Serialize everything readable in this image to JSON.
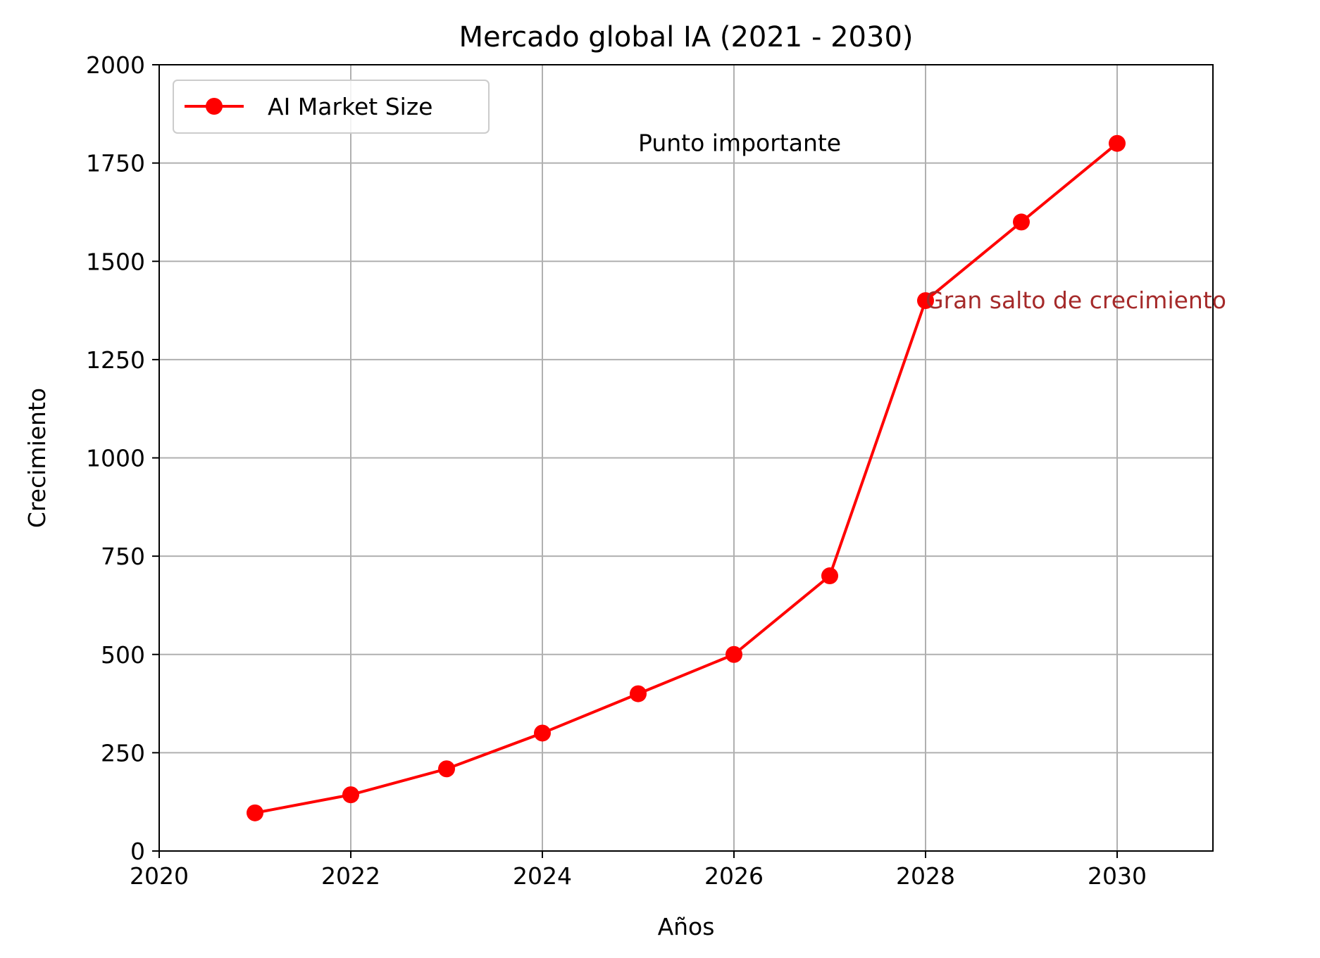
{
  "chart_data": {
    "type": "line",
    "title": "Mercado global IA (2021 - 2030)",
    "xlabel": "Años",
    "ylabel": "Crecimiento",
    "xlim": [
      2020,
      2031
    ],
    "ylim": [
      0,
      2000
    ],
    "x_ticks": [
      2020,
      2022,
      2024,
      2026,
      2028,
      2030
    ],
    "y_ticks": [
      0,
      250,
      500,
      750,
      1000,
      1250,
      1500,
      1750,
      2000
    ],
    "grid": true,
    "legend_position": "upper-left",
    "series": [
      {
        "name": "AI Market Size",
        "color": "#ff0000",
        "marker": "circle",
        "x": [
          2021,
          2022,
          2023,
          2024,
          2025,
          2026,
          2027,
          2028,
          2029,
          2030
        ],
        "y": [
          97,
          143,
          209,
          300,
          400,
          500,
          700,
          1400,
          1600,
          1800
        ]
      }
    ],
    "annotations": [
      {
        "text": "Punto importante",
        "x": 2025,
        "y": 1800,
        "color": "#000000"
      },
      {
        "text": "Gran salto de crecimiento",
        "x": 2028,
        "y": 1400,
        "color": "#a52a2a"
      }
    ]
  }
}
